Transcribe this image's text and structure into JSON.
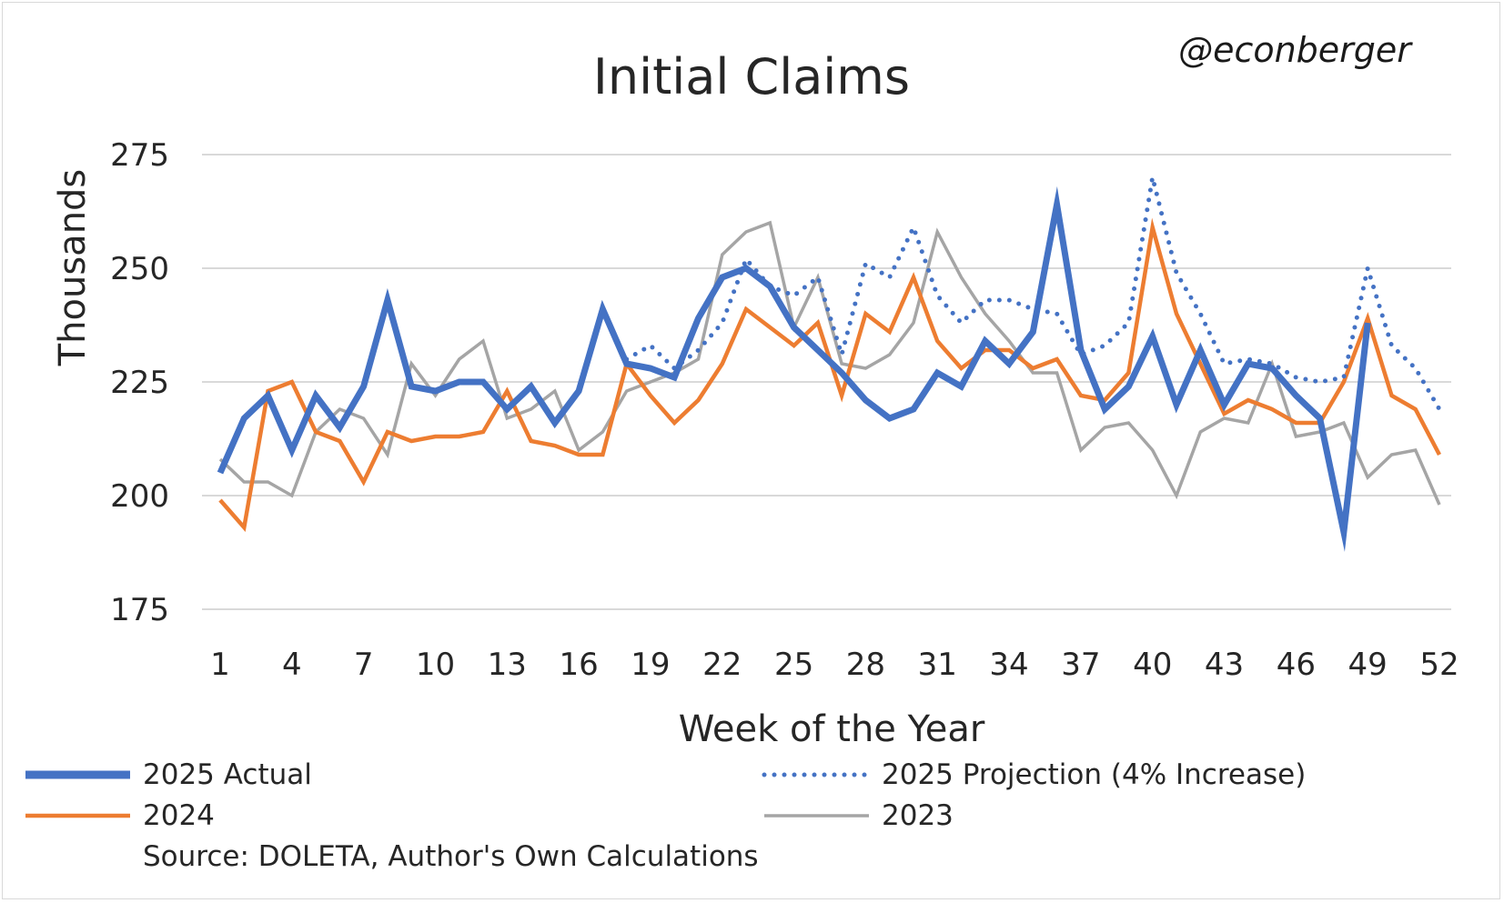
{
  "chart_data": {
    "type": "line",
    "title": "Initial Claims",
    "handle": "@econberger",
    "xlabel": "Week of the Year",
    "ylabel": "Thousands",
    "source": "Source: DOLETA, Author's Own Calculations",
    "ylim": [
      175,
      275
    ],
    "yticks": [
      175,
      200,
      225,
      250,
      275
    ],
    "xlim": [
      1,
      52
    ],
    "xticks": [
      1,
      4,
      7,
      10,
      13,
      16,
      19,
      22,
      25,
      28,
      31,
      34,
      37,
      40,
      43,
      46,
      49,
      52
    ],
    "grid": true,
    "legend_placement": "bottom",
    "series": [
      {
        "name": "2023",
        "color": "#a5a5a5",
        "style": "solid-thin",
        "x": [
          1,
          2,
          3,
          4,
          5,
          6,
          7,
          8,
          9,
          10,
          11,
          12,
          13,
          14,
          15,
          16,
          17,
          18,
          19,
          20,
          21,
          22,
          23,
          24,
          25,
          26,
          27,
          28,
          29,
          30,
          31,
          32,
          33,
          34,
          35,
          36,
          37,
          38,
          39,
          40,
          41,
          42,
          43,
          44,
          45,
          46,
          47,
          48,
          49,
          50,
          51,
          52
        ],
        "values": [
          208,
          203,
          203,
          200,
          214,
          219,
          217,
          209,
          229,
          222,
          230,
          234,
          217,
          219,
          223,
          210,
          214,
          223,
          225,
          227,
          230,
          253,
          258,
          260,
          237,
          248,
          229,
          228,
          231,
          238,
          258,
          248,
          240,
          234,
          227,
          227,
          210,
          215,
          216,
          210,
          200,
          214,
          217,
          216,
          229,
          213,
          214,
          216,
          204,
          209,
          210,
          198
        ]
      },
      {
        "name": "2024",
        "color": "#ed7d31",
        "style": "solid",
        "x": [
          1,
          2,
          3,
          4,
          5,
          6,
          7,
          8,
          9,
          10,
          11,
          12,
          13,
          14,
          15,
          16,
          17,
          18,
          19,
          20,
          21,
          22,
          23,
          24,
          25,
          26,
          27,
          28,
          29,
          30,
          31,
          32,
          33,
          34,
          35,
          36,
          37,
          38,
          39,
          40,
          41,
          42,
          43,
          44,
          45,
          46,
          47,
          48,
          49,
          50,
          51,
          52
        ],
        "values": [
          199,
          193,
          223,
          225,
          214,
          212,
          203,
          214,
          212,
          213,
          213,
          214,
          223,
          212,
          211,
          209,
          209,
          229,
          222,
          216,
          221,
          229,
          241,
          237,
          233,
          238,
          222,
          240,
          236,
          248,
          234,
          228,
          232,
          232,
          228,
          230,
          222,
          221,
          227,
          259,
          240,
          229,
          218,
          221,
          219,
          216,
          216,
          225,
          239,
          222,
          219,
          209
        ]
      },
      {
        "name": "2025 Projection (4% Increase)",
        "color": "#4472c4",
        "style": "dotted",
        "x": [
          18,
          19,
          20,
          21,
          22,
          23,
          24,
          25,
          26,
          27,
          28,
          29,
          30,
          31,
          32,
          33,
          34,
          35,
          36,
          37,
          38,
          39,
          40,
          41,
          42,
          43,
          44,
          45,
          46,
          47,
          48,
          49,
          50,
          51,
          52
        ],
        "values": [
          230,
          233,
          228,
          232,
          238,
          252,
          246,
          244,
          248,
          231,
          251,
          248,
          259,
          244,
          238,
          243,
          243,
          241,
          240,
          231,
          233,
          238,
          270,
          249,
          240,
          229,
          230,
          229,
          226,
          225,
          226,
          250,
          233,
          228,
          219
        ]
      },
      {
        "name": "2025 Actual",
        "color": "#4472c4",
        "style": "solid-thick",
        "x": [
          1,
          2,
          3,
          4,
          5,
          6,
          7,
          8,
          9,
          10,
          11,
          12,
          13,
          14,
          15,
          16,
          17,
          18,
          19,
          20,
          21,
          22,
          23,
          24,
          25,
          26,
          27,
          28,
          29,
          30,
          31,
          32,
          33,
          34,
          35,
          36,
          37,
          38,
          39,
          40,
          41,
          42,
          43,
          44,
          45,
          46,
          47,
          48,
          49
        ],
        "values": [
          205,
          217,
          222,
          210,
          222,
          215,
          224,
          243,
          224,
          223,
          225,
          225,
          219,
          224,
          216,
          223,
          241,
          229,
          228,
          226,
          239,
          248,
          250,
          246,
          237,
          232,
          227,
          221,
          217,
          219,
          227,
          224,
          234,
          229,
          236,
          264,
          232,
          219,
          224,
          235,
          220,
          232,
          220,
          229,
          228,
          222,
          217,
          192,
          238
        ]
      }
    ],
    "legend": [
      {
        "name": "2025 Actual",
        "color": "#4472c4",
        "style": "solid-thick"
      },
      {
        "name": "2025 Projection (4% Increase)",
        "color": "#4472c4",
        "style": "dotted"
      },
      {
        "name": "2024",
        "color": "#ed7d31",
        "style": "solid"
      },
      {
        "name": "2023",
        "color": "#a5a5a5",
        "style": "solid-thin"
      }
    ]
  }
}
